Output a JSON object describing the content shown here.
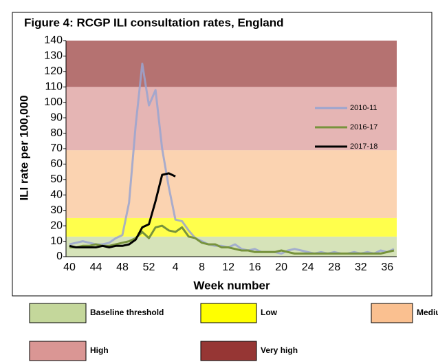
{
  "chart_data": {
    "type": "line",
    "title": "Figure 4: RCGP ILI consultation rates, England",
    "x_label": "Week number",
    "y_label": "ILI rate per 100,000",
    "categories": [
      40,
      null,
      null,
      null,
      44,
      null,
      null,
      null,
      48,
      null,
      null,
      null,
      52,
      null,
      null,
      null,
      4,
      null,
      null,
      null,
      8,
      null,
      null,
      null,
      12,
      null,
      null,
      null,
      16,
      null,
      null,
      null,
      20,
      null,
      null,
      null,
      24,
      null,
      null,
      null,
      28,
      null,
      null,
      null,
      32,
      null,
      null,
      null,
      36,
      null
    ],
    "ylim": [
      0,
      140
    ],
    "yticks": [
      0,
      10,
      20,
      30,
      40,
      50,
      60,
      70,
      80,
      90,
      100,
      110,
      120,
      130,
      140
    ],
    "bands": [
      {
        "name": "Baseline threshold",
        "from": 0,
        "to": 13,
        "color": "#c4d79b"
      },
      {
        "name": "Low",
        "from": 13,
        "to": 25,
        "color": "#ffff00"
      },
      {
        "name": "Medium",
        "from": 25,
        "to": 69,
        "color": "#fac090"
      },
      {
        "name": "High",
        "from": 69,
        "to": 110,
        "color": "#da9694"
      },
      {
        "name": "Very high",
        "from": 110,
        "to": 140,
        "color": "#963634"
      }
    ],
    "series": [
      {
        "name": "2010-11",
        "color": "#9aa5d0",
        "values": [
          8,
          9,
          10,
          9,
          8,
          8,
          9,
          12,
          14,
          35,
          85,
          125,
          98,
          108,
          70,
          45,
          24,
          23,
          17,
          12,
          10,
          8,
          7,
          7,
          6,
          8,
          5,
          4,
          5,
          3,
          3,
          3,
          2,
          4,
          5,
          4,
          3,
          2,
          3,
          2,
          3,
          2,
          2,
          3,
          2,
          3,
          2,
          4,
          3,
          5
        ]
      },
      {
        "name": "2016-17",
        "color": "#77933c",
        "values": [
          6,
          6,
          7,
          7,
          8,
          7,
          7,
          8,
          9,
          10,
          12,
          16,
          12,
          19,
          20,
          17,
          16,
          19,
          13,
          12,
          9,
          8,
          8,
          6,
          6,
          5,
          4,
          4,
          3,
          3,
          3,
          3,
          4,
          3,
          2,
          2,
          2,
          2,
          2,
          2,
          2,
          2,
          2,
          2,
          2,
          2,
          2,
          2,
          3,
          4
        ]
      },
      {
        "name": "2017-18",
        "color": "#000000",
        "values": [
          7,
          6,
          6,
          6,
          6,
          7,
          6,
          7,
          7,
          8,
          11,
          19,
          21,
          36,
          53,
          54,
          52,
          null,
          null,
          null,
          null,
          null,
          null,
          null,
          null,
          null,
          null,
          null,
          null,
          null,
          null,
          null,
          null,
          null,
          null,
          null,
          null,
          null,
          null,
          null,
          null,
          null,
          null,
          null,
          null,
          null,
          null,
          null,
          null,
          null
        ]
      }
    ]
  }
}
